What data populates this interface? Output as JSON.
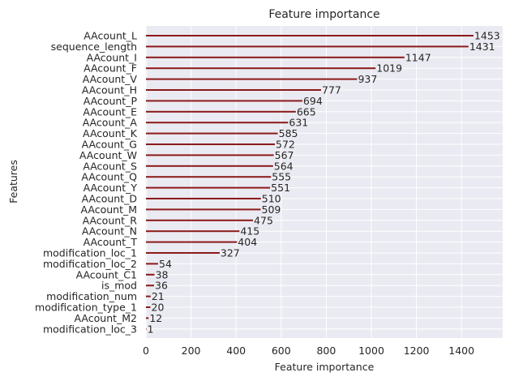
{
  "chart_data": {
    "type": "bar",
    "orientation": "horizontal",
    "title": "Feature importance",
    "xlabel": "Feature importance",
    "ylabel": "Features",
    "xlim": [
      0,
      1600
    ],
    "xticks": [
      0,
      200,
      400,
      600,
      800,
      1000,
      1200,
      1400
    ],
    "grid": true,
    "categories": [
      "AAcount_L",
      "sequence_length",
      "AAcount_I",
      "AAcount_F",
      "AAcount_V",
      "AAcount_H",
      "AAcount_P",
      "AAcount_E",
      "AAcount_A",
      "AAcount_K",
      "AAcount_G",
      "AAcount_W",
      "AAcount_S",
      "AAcount_Q",
      "AAcount_Y",
      "AAcount_D",
      "AAcount_M",
      "AAcount_R",
      "AAcount_N",
      "AAcount_T",
      "modification_loc_1",
      "modification_loc_2",
      "AAcount_C1",
      "is_mod",
      "modification_num",
      "modification_type_1",
      "AAcount_M2",
      "modification_loc_3"
    ],
    "values": [
      1453,
      1431,
      1147,
      1019,
      937,
      777,
      694,
      665,
      631,
      585,
      572,
      567,
      564,
      555,
      551,
      510,
      509,
      475,
      415,
      404,
      327,
      54,
      38,
      36,
      21,
      20,
      12,
      1
    ],
    "bar_color": "#8b1a1a",
    "background_color": "#eaeaf2",
    "grid_color": "#ffffff"
  }
}
